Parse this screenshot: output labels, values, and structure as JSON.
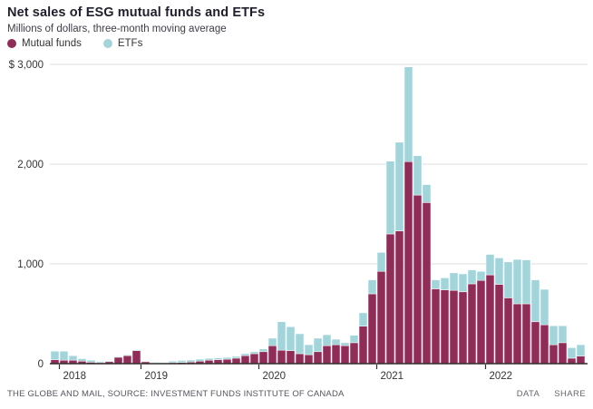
{
  "header": {
    "title": "Net sales of ESG mutual funds and ETFs",
    "subtitle": "Millions of dollars, three-month moving average"
  },
  "legend": [
    {
      "label": "Mutual funds",
      "color": "#8e2d57"
    },
    {
      "label": "ETFs",
      "color": "#a3d4da"
    }
  ],
  "footer": {
    "source": "THE GLOBE AND MAIL, SOURCE: INVESTMENT FUNDS INSTITUTE OF CANADA",
    "links": [
      {
        "label": "DATA"
      },
      {
        "label": "SHARE"
      }
    ]
  },
  "colors": {
    "mutual_funds": "#8e2d57",
    "etfs": "#a3d4da",
    "gridline": "#dcdcdc",
    "axis": "#2e2e2e",
    "tick_text": "#333333"
  },
  "chart_data": {
    "type": "bar",
    "stacked": true,
    "title": "Net sales of ESG mutual funds and ETFs",
    "subtitle": "Millions of dollars, three-month moving average",
    "unit": "millions of dollars, three-month moving average",
    "ylim": [
      0,
      3000
    ],
    "grid": true,
    "legend_position": "top-left",
    "y_ticks": [
      {
        "value": 0,
        "label": "0"
      },
      {
        "value": 1000,
        "label": "1,000"
      },
      {
        "value": 2000,
        "label": "2,000"
      },
      {
        "value": 3000,
        "label": "$ 3,000"
      }
    ],
    "x_ticks": [
      {
        "label": "2018",
        "index": 1
      },
      {
        "label": "2019",
        "index": 10
      },
      {
        "label": "2020",
        "index": 23
      },
      {
        "label": "2021",
        "index": 36
      },
      {
        "label": "2022",
        "index": 48
      }
    ],
    "series": [
      {
        "name": "Mutual funds",
        "color": "#8e2d57",
        "values": [
          40,
          35,
          35,
          25,
          15,
          10,
          20,
          65,
          80,
          130,
          20,
          8,
          6,
          10,
          12,
          16,
          25,
          35,
          40,
          45,
          55,
          80,
          100,
          120,
          180,
          135,
          130,
          100,
          90,
          120,
          180,
          190,
          180,
          210,
          375,
          700,
          925,
          1300,
          1330,
          2025,
          1690,
          1615,
          750,
          740,
          735,
          720,
          800,
          835,
          890,
          795,
          660,
          600,
          600,
          420,
          390,
          190,
          210,
          55,
          75
        ]
      },
      {
        "name": "ETFs",
        "color": "#a3d4da",
        "values": [
          85,
          90,
          45,
          25,
          20,
          12,
          8,
          6,
          8,
          10,
          6,
          5,
          6,
          16,
          20,
          20,
          20,
          18,
          18,
          18,
          18,
          20,
          20,
          27,
          75,
          285,
          240,
          200,
          100,
          135,
          110,
          55,
          30,
          75,
          135,
          140,
          190,
          730,
          890,
          950,
          395,
          180,
          90,
          120,
          175,
          180,
          140,
          90,
          205,
          265,
          360,
          445,
          440,
          420,
          355,
          190,
          170,
          105,
          115
        ]
      }
    ]
  }
}
